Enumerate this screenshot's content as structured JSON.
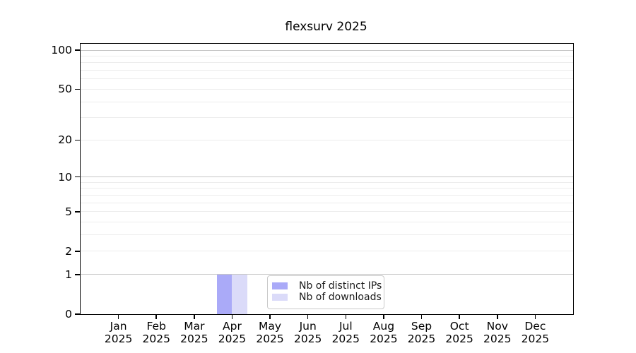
{
  "chart_data": {
    "type": "bar",
    "title": "flexsurv 2025",
    "categories": [
      "Jan",
      "Feb",
      "Mar",
      "Apr",
      "May",
      "Jun",
      "Jul",
      "Aug",
      "Sep",
      "Oct",
      "Nov",
      "Dec"
    ],
    "year_label": "2025",
    "series": [
      {
        "name": "Nb of distinct IPs",
        "color": "#aaaaf8",
        "values": [
          0,
          0,
          0,
          1,
          0,
          0,
          0,
          0,
          0,
          0,
          0,
          0
        ]
      },
      {
        "name": "Nb of downloads",
        "color": "#dbdbf9",
        "values": [
          0,
          0,
          0,
          1,
          0,
          0,
          0,
          0,
          0,
          0,
          0,
          0
        ]
      }
    ],
    "y_scale": "log1p",
    "ylim": [
      0,
      100
    ],
    "y_tick_values": [
      0,
      1,
      2,
      5,
      10,
      20,
      50,
      100
    ],
    "y_major_grid_values": [
      1,
      10,
      100
    ],
    "y_minor_grid_values": [
      2,
      3,
      4,
      5,
      6,
      7,
      8,
      9,
      20,
      30,
      40,
      50,
      60,
      70,
      80,
      90
    ],
    "grid": "horizontal",
    "legend_position": "lower center inside",
    "colors": {
      "axis": "#000000",
      "major_grid": "#c6c6c6",
      "minor_grid": "#ededed",
      "background": "#ffffff"
    }
  }
}
